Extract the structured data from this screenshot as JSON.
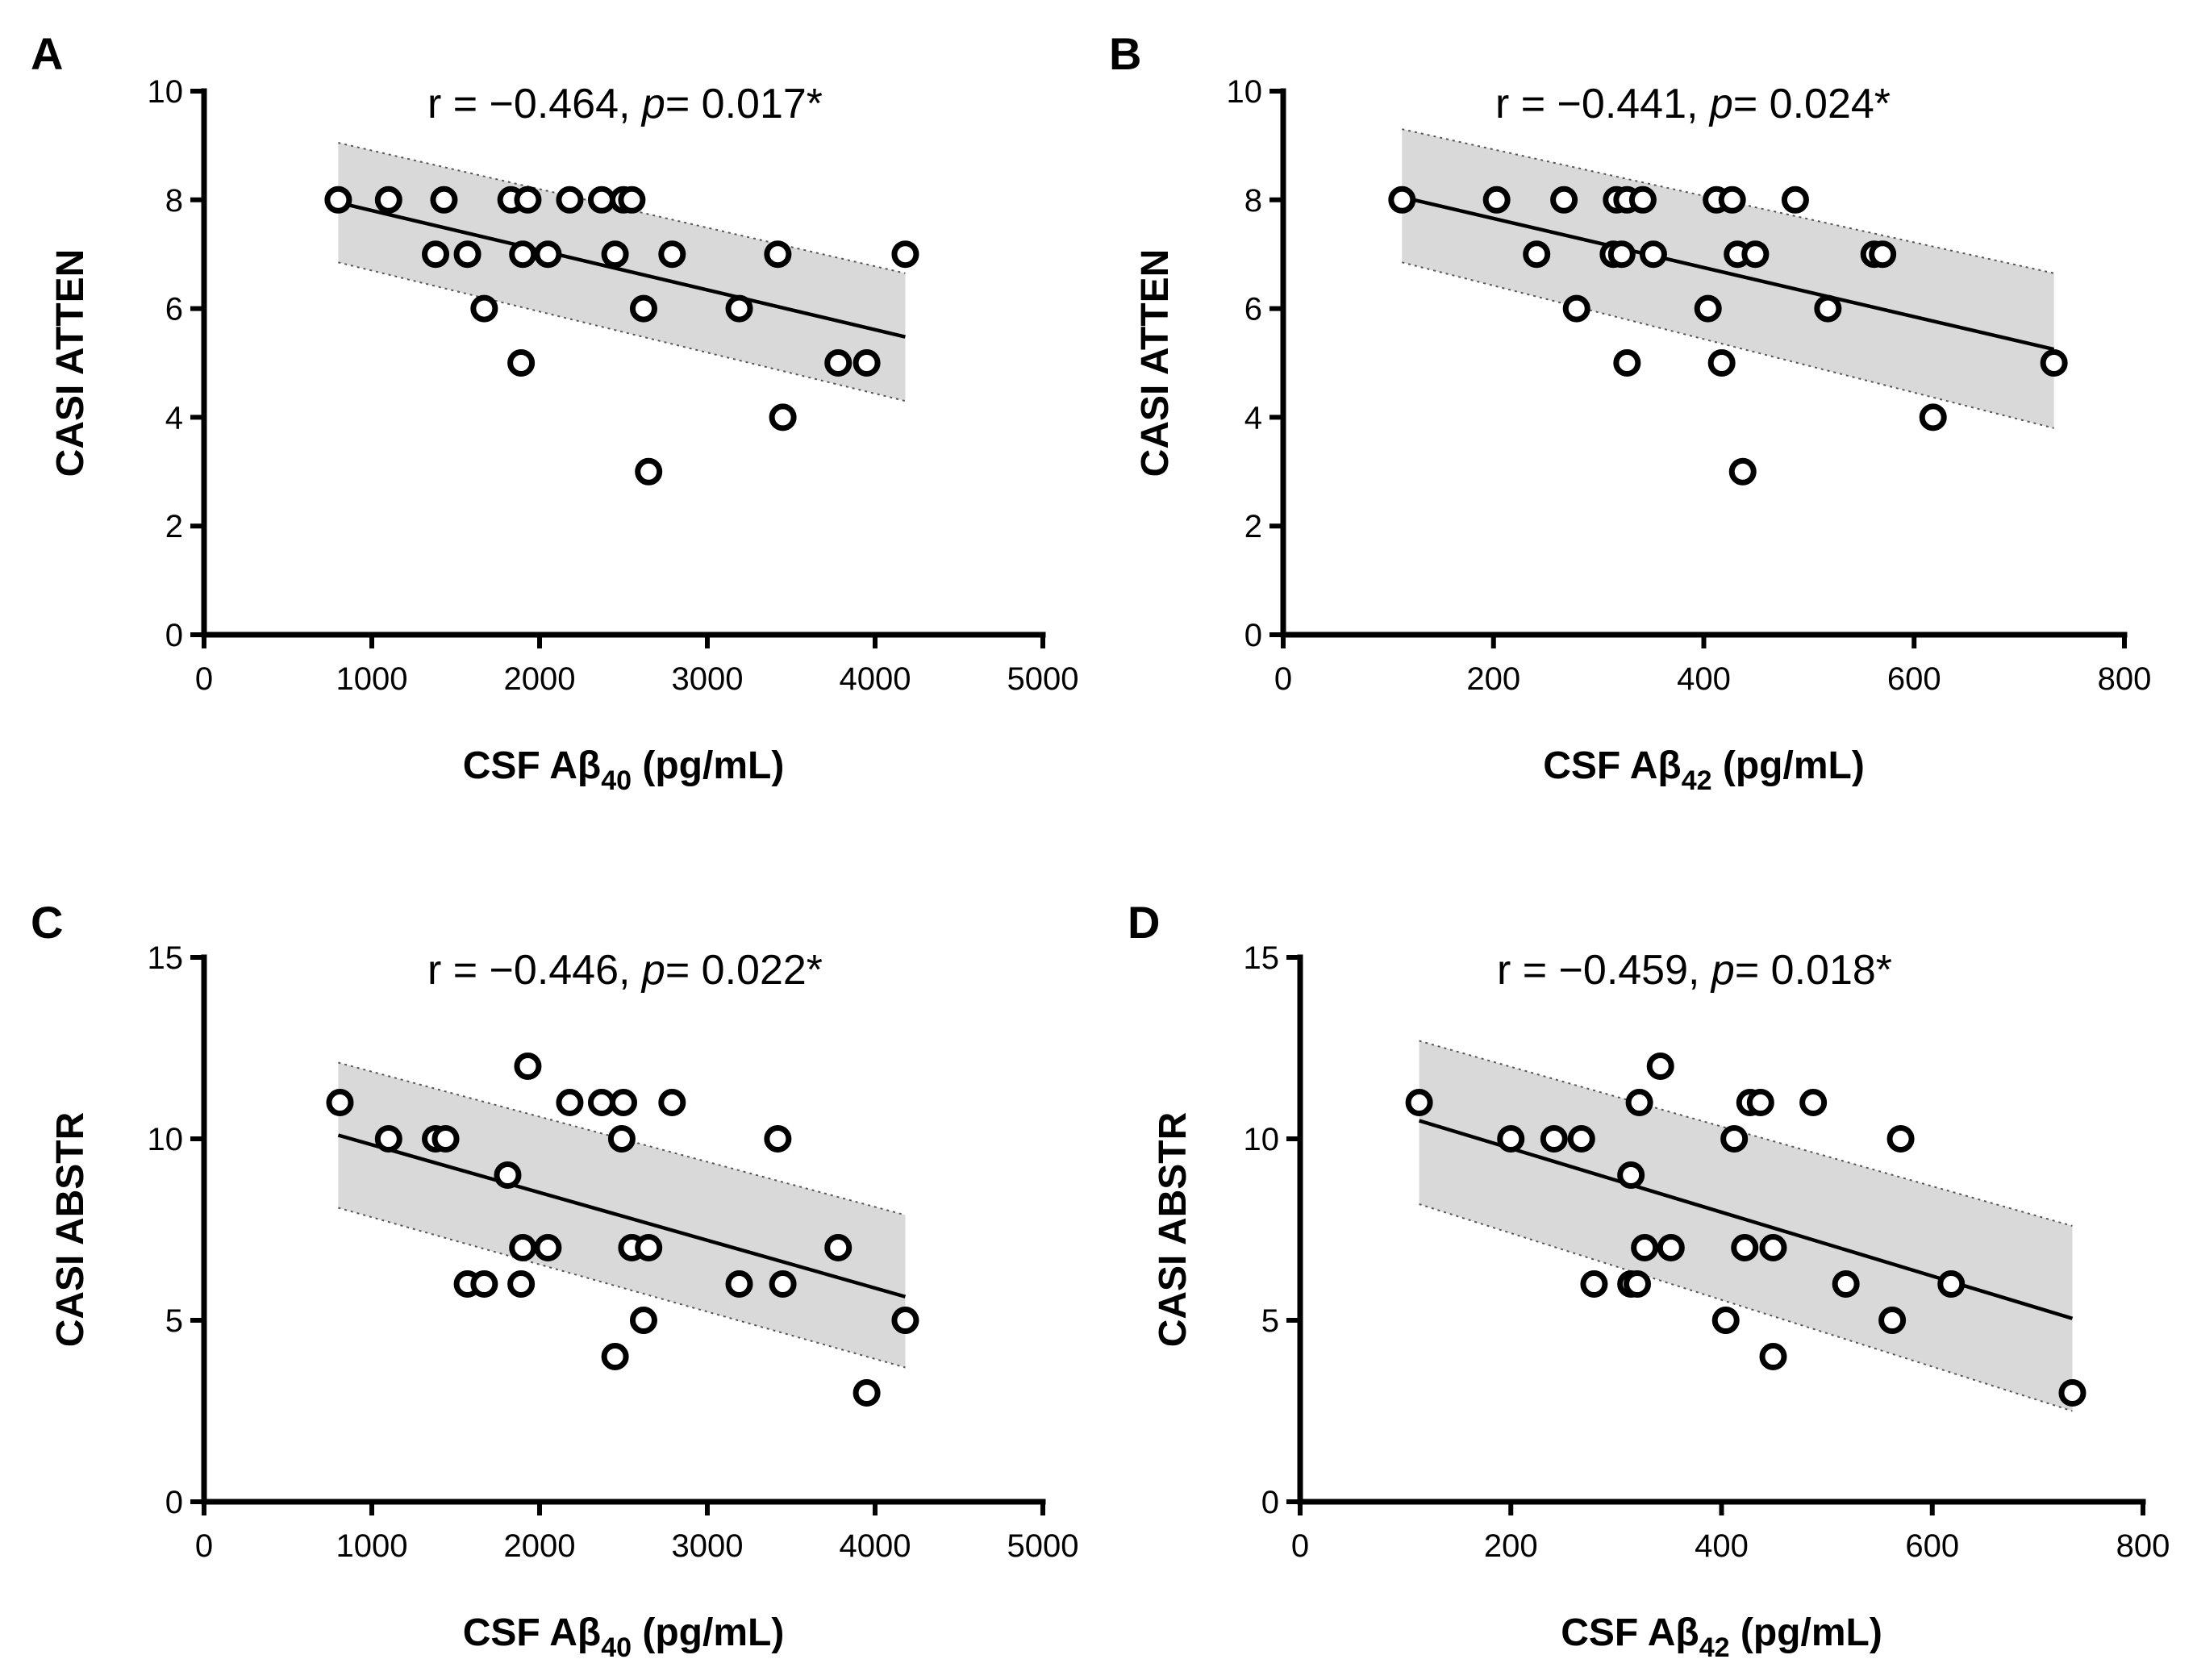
{
  "chart_data": [
    {
      "type": "scatter",
      "panel": "A",
      "stat_r": "r = −0.464, ",
      "stat_p_letter": "p",
      "stat_p": "= 0.017*",
      "ylabel": "CASI ATTEN",
      "xlabel_prefix": "CSF Aβ",
      "xlabel_sub": "40",
      "xlabel_suffix": " (pg/mL)",
      "xlim": [
        0,
        5000
      ],
      "ylim": [
        0,
        10
      ],
      "xticks": [
        "0",
        "1000",
        "2000",
        "3000",
        "4000",
        "5000"
      ],
      "yticks": [
        "0",
        "2",
        "4",
        "6",
        "8",
        "10"
      ],
      "regression": {
        "x": [
          800,
          4180
        ],
        "y": [
          7.95,
          5.48
        ]
      },
      "ci_band": {
        "x": [
          800,
          4180
        ],
        "upper": [
          9.05,
          6.65
        ],
        "lower": [
          6.85,
          4.3
        ]
      },
      "points": [
        {
          "x": 800,
          "y": 8
        },
        {
          "x": 1100,
          "y": 8
        },
        {
          "x": 1430,
          "y": 8
        },
        {
          "x": 1830,
          "y": 8
        },
        {
          "x": 1930,
          "y": 8
        },
        {
          "x": 2180,
          "y": 8
        },
        {
          "x": 2370,
          "y": 8
        },
        {
          "x": 2500,
          "y": 8
        },
        {
          "x": 2550,
          "y": 8
        },
        {
          "x": 1380,
          "y": 7
        },
        {
          "x": 1570,
          "y": 7
        },
        {
          "x": 1900,
          "y": 7
        },
        {
          "x": 2050,
          "y": 7
        },
        {
          "x": 2450,
          "y": 7
        },
        {
          "x": 2790,
          "y": 7
        },
        {
          "x": 3420,
          "y": 7
        },
        {
          "x": 4180,
          "y": 7
        },
        {
          "x": 1670,
          "y": 6
        },
        {
          "x": 2620,
          "y": 6
        },
        {
          "x": 3190,
          "y": 6
        },
        {
          "x": 1890,
          "y": 5
        },
        {
          "x": 3780,
          "y": 5
        },
        {
          "x": 3950,
          "y": 5
        },
        {
          "x": 3450,
          "y": 4
        },
        {
          "x": 2650,
          "y": 3
        }
      ]
    },
    {
      "type": "scatter",
      "panel": "B",
      "stat_r": "r = −0.441, ",
      "stat_p_letter": "p",
      "stat_p": "= 0.024*",
      "ylabel": "CASI ATTEN",
      "xlabel_prefix": "CSF Aβ",
      "xlabel_sub": "42",
      "xlabel_suffix": " (pg/mL)",
      "xlim": [
        0,
        800
      ],
      "ylim": [
        0,
        10
      ],
      "xticks": [
        "0",
        "200",
        "400",
        "600",
        "800"
      ],
      "yticks": [
        "0",
        "2",
        "4",
        "6",
        "8",
        "10"
      ],
      "regression": {
        "x": [
          113,
          733
        ],
        "y": [
          8.05,
          5.25
        ]
      },
      "ci_band": {
        "x": [
          113,
          733
        ],
        "upper": [
          9.3,
          6.65
        ],
        "lower": [
          6.85,
          3.8
        ]
      },
      "points": [
        {
          "x": 113,
          "y": 8
        },
        {
          "x": 203,
          "y": 8
        },
        {
          "x": 267,
          "y": 8
        },
        {
          "x": 317,
          "y": 8
        },
        {
          "x": 327,
          "y": 8
        },
        {
          "x": 342,
          "y": 8
        },
        {
          "x": 412,
          "y": 8
        },
        {
          "x": 427,
          "y": 8
        },
        {
          "x": 487,
          "y": 8
        },
        {
          "x": 241,
          "y": 7
        },
        {
          "x": 314,
          "y": 7
        },
        {
          "x": 322,
          "y": 7
        },
        {
          "x": 352,
          "y": 7
        },
        {
          "x": 432,
          "y": 7
        },
        {
          "x": 449,
          "y": 7
        },
        {
          "x": 562,
          "y": 7
        },
        {
          "x": 570,
          "y": 7
        },
        {
          "x": 279,
          "y": 6
        },
        {
          "x": 404,
          "y": 6
        },
        {
          "x": 518,
          "y": 6
        },
        {
          "x": 327,
          "y": 5
        },
        {
          "x": 417,
          "y": 5
        },
        {
          "x": 733,
          "y": 5
        },
        {
          "x": 618,
          "y": 4
        },
        {
          "x": 437,
          "y": 3
        }
      ]
    },
    {
      "type": "scatter",
      "panel": "C",
      "stat_r": "r = −0.446, ",
      "stat_p_letter": "p",
      "stat_p": "= 0.022*",
      "ylabel": "CASI ABSTR",
      "xlabel_prefix": "CSF Aβ",
      "xlabel_sub": "40",
      "xlabel_suffix": " (pg/mL)",
      "xlim": [
        0,
        5000
      ],
      "ylim": [
        0,
        15
      ],
      "xticks": [
        "0",
        "1000",
        "2000",
        "3000",
        "4000",
        "5000"
      ],
      "yticks": [
        "0",
        "5",
        "10",
        "15"
      ],
      "regression": {
        "x": [
          800,
          4180
        ],
        "y": [
          10.1,
          5.65
        ]
      },
      "ci_band": {
        "x": [
          800,
          4180
        ],
        "upper": [
          12.1,
          7.9
        ],
        "lower": [
          8.1,
          3.7
        ]
      },
      "points": [
        {
          "x": 810,
          "y": 11
        },
        {
          "x": 1930,
          "y": 12
        },
        {
          "x": 2180,
          "y": 11
        },
        {
          "x": 2370,
          "y": 11
        },
        {
          "x": 2500,
          "y": 11
        },
        {
          "x": 2790,
          "y": 11
        },
        {
          "x": 1100,
          "y": 10
        },
        {
          "x": 1380,
          "y": 10
        },
        {
          "x": 1440,
          "y": 10
        },
        {
          "x": 2490,
          "y": 10
        },
        {
          "x": 3420,
          "y": 10
        },
        {
          "x": 1810,
          "y": 9
        },
        {
          "x": 1900,
          "y": 7
        },
        {
          "x": 2050,
          "y": 7
        },
        {
          "x": 2550,
          "y": 7
        },
        {
          "x": 2650,
          "y": 7
        },
        {
          "x": 3780,
          "y": 7
        },
        {
          "x": 1570,
          "y": 6
        },
        {
          "x": 1670,
          "y": 6
        },
        {
          "x": 1890,
          "y": 6
        },
        {
          "x": 3190,
          "y": 6
        },
        {
          "x": 3450,
          "y": 6
        },
        {
          "x": 2620,
          "y": 5
        },
        {
          "x": 4180,
          "y": 5
        },
        {
          "x": 2450,
          "y": 4
        },
        {
          "x": 3950,
          "y": 3
        }
      ]
    },
    {
      "type": "scatter",
      "panel": "D",
      "stat_r": "r = −0.459, ",
      "stat_p_letter": "p",
      "stat_p": "= 0.018*",
      "ylabel": "CASI ABSTR",
      "xlabel_prefix": "CSF Aβ",
      "xlabel_sub": "42",
      "xlabel_suffix": " (pg/mL)",
      "xlim": [
        0,
        800
      ],
      "ylim": [
        0,
        15
      ],
      "xticks": [
        "0",
        "200",
        "400",
        "600",
        "800"
      ],
      "yticks": [
        "0",
        "5",
        "10",
        "15"
      ],
      "regression": {
        "x": [
          113,
          733
        ],
        "y": [
          10.5,
          5.05
        ]
      },
      "ci_band": {
        "x": [
          113,
          733
        ],
        "upper": [
          12.7,
          7.6
        ],
        "lower": [
          8.2,
          2.5
        ]
      },
      "points": [
        {
          "x": 113,
          "y": 11
        },
        {
          "x": 322,
          "y": 11
        },
        {
          "x": 342,
          "y": 12
        },
        {
          "x": 427,
          "y": 11
        },
        {
          "x": 437,
          "y": 11
        },
        {
          "x": 487,
          "y": 11
        },
        {
          "x": 200,
          "y": 10
        },
        {
          "x": 241,
          "y": 10
        },
        {
          "x": 267,
          "y": 10
        },
        {
          "x": 412,
          "y": 10
        },
        {
          "x": 570,
          "y": 10
        },
        {
          "x": 314,
          "y": 9
        },
        {
          "x": 327,
          "y": 7
        },
        {
          "x": 352,
          "y": 7
        },
        {
          "x": 422,
          "y": 7
        },
        {
          "x": 449,
          "y": 7
        },
        {
          "x": 279,
          "y": 6
        },
        {
          "x": 314,
          "y": 6
        },
        {
          "x": 320,
          "y": 6
        },
        {
          "x": 518,
          "y": 6
        },
        {
          "x": 618,
          "y": 6
        },
        {
          "x": 404,
          "y": 5
        },
        {
          "x": 562,
          "y": 5
        },
        {
          "x": 449,
          "y": 4
        },
        {
          "x": 733,
          "y": 3
        }
      ]
    }
  ]
}
